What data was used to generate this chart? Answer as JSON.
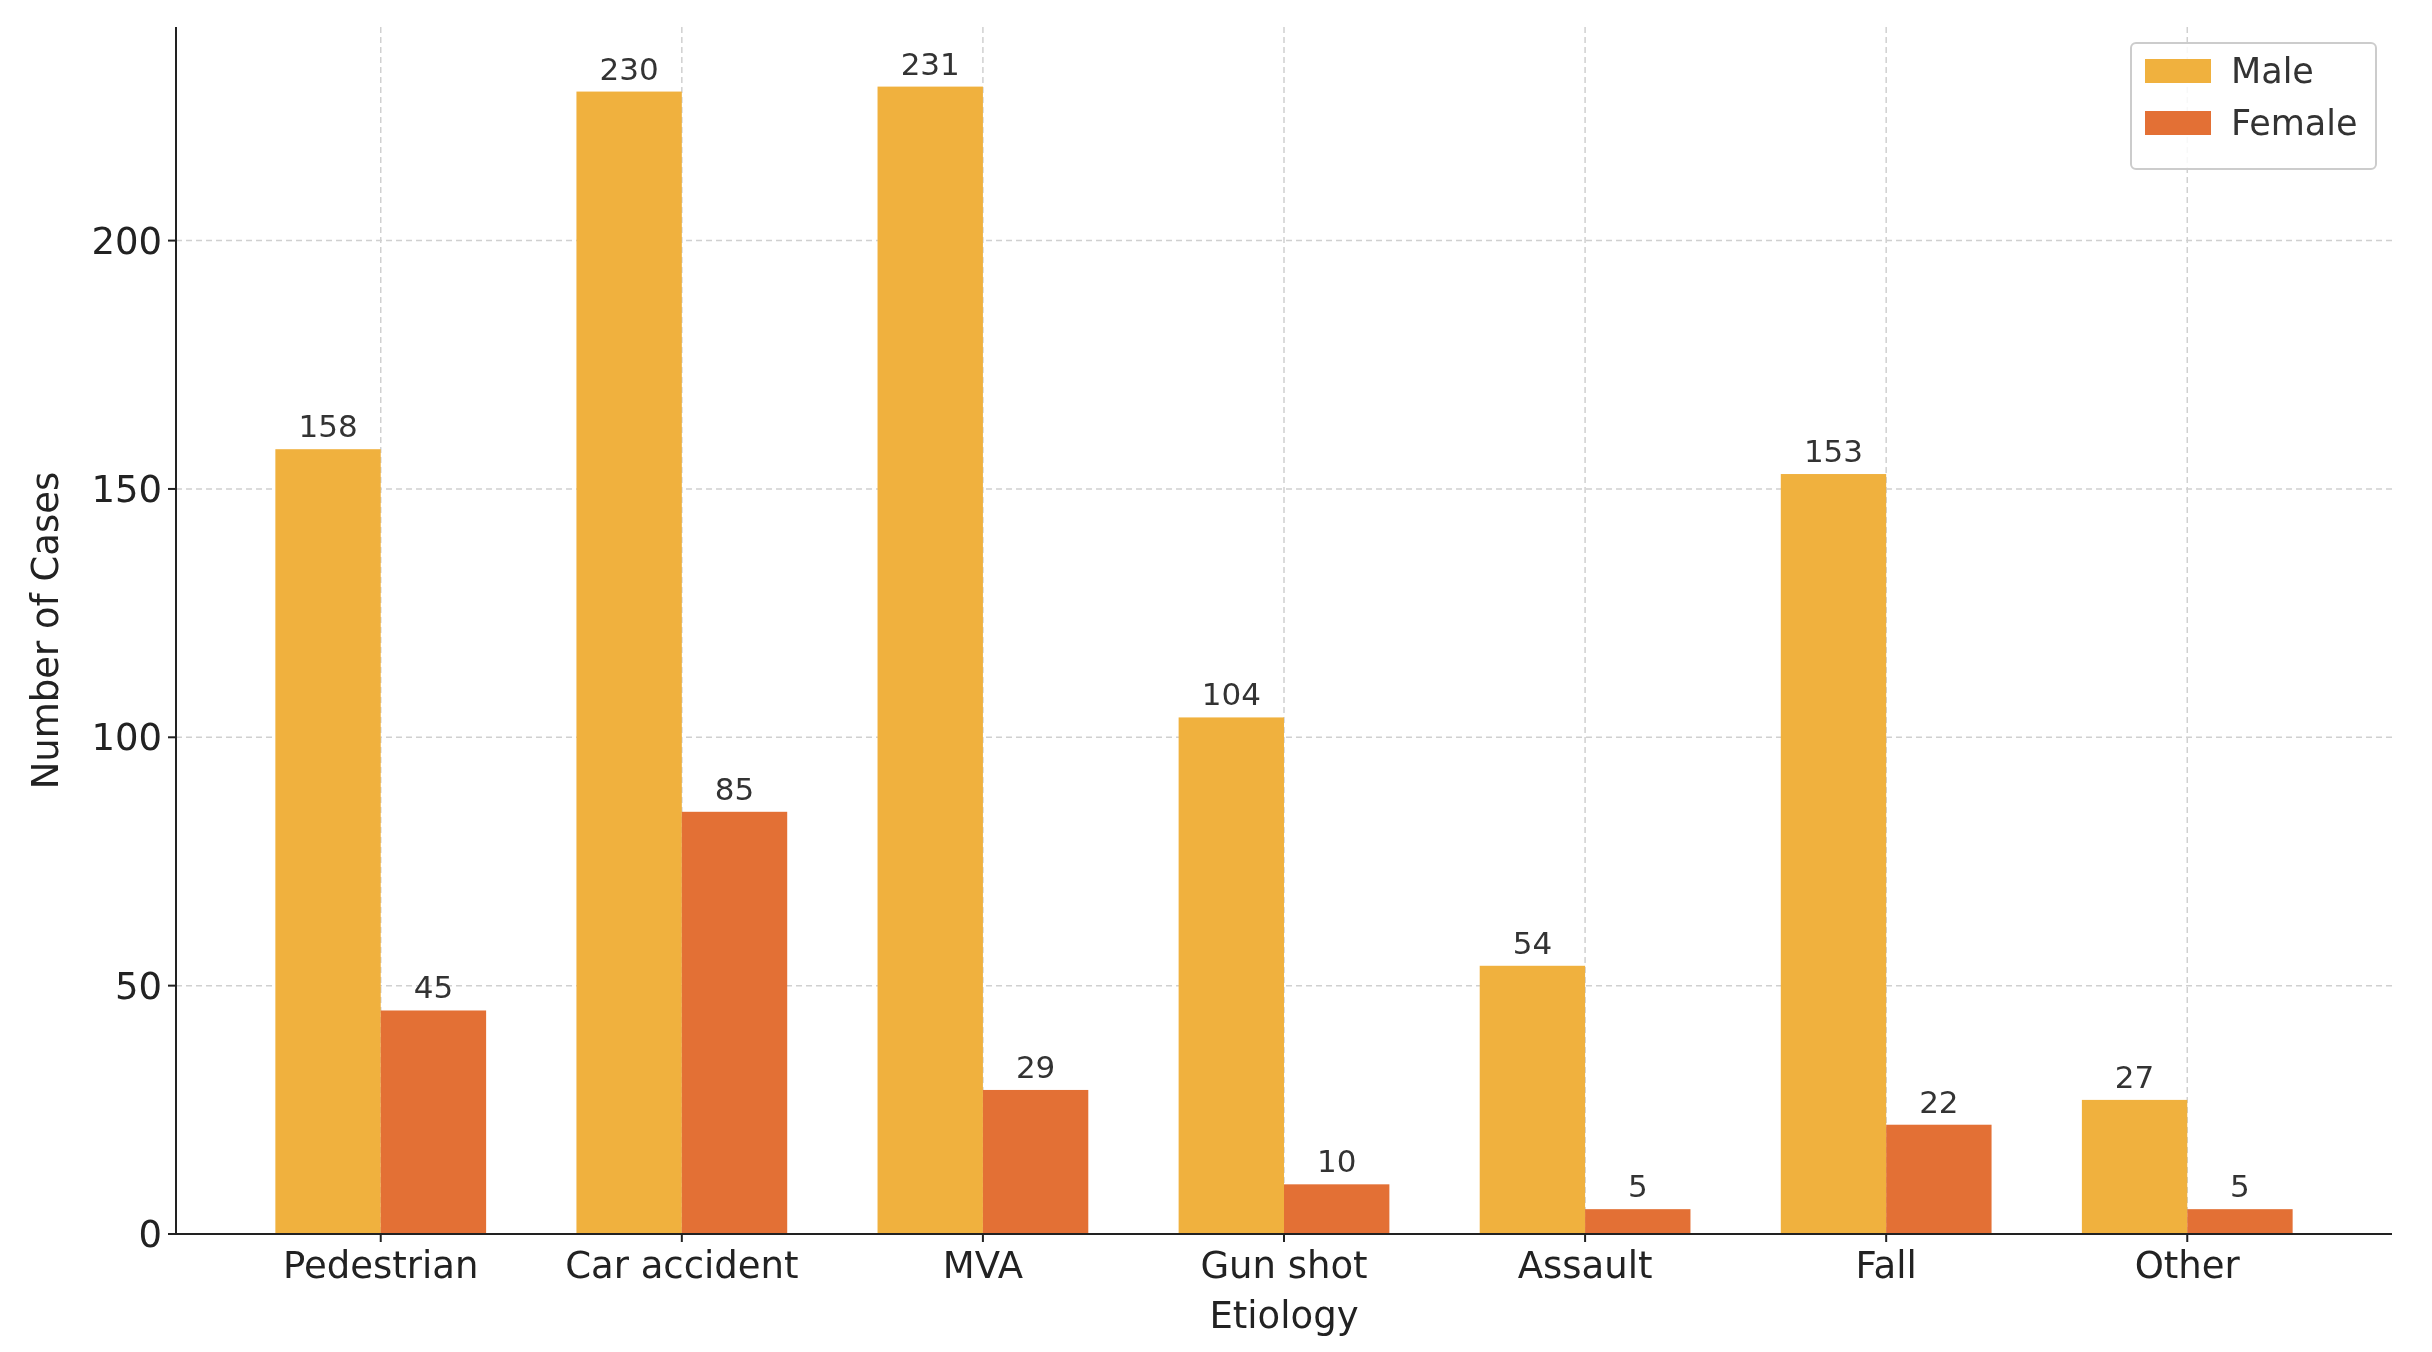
{
  "chart_data": {
    "type": "bar",
    "xlabel": "Etiology",
    "ylabel": "Number of Cases",
    "categories": [
      "Pedestrian",
      "Car accident",
      "MVA",
      "Gun shot",
      "Assault",
      "Fall",
      "Other"
    ],
    "series": [
      {
        "name": "Male",
        "color": "#f0b13e",
        "values": [
          158,
          230,
          231,
          104,
          54,
          153,
          27
        ]
      },
      {
        "name": "Female",
        "color": "#e37035",
        "values": [
          45,
          85,
          29,
          10,
          5,
          22,
          5
        ]
      }
    ],
    "ylim": [
      0,
      243
    ],
    "yticks": [
      0,
      50,
      100,
      150,
      200
    ],
    "grid": true,
    "legend": "top right",
    "data_labels": true
  }
}
